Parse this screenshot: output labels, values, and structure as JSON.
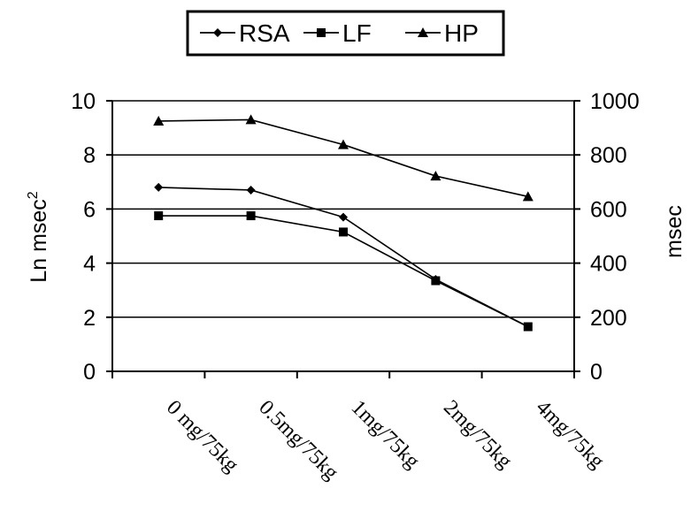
{
  "chart_data": {
    "type": "line",
    "categories": [
      "0 mg/75kg",
      "0.5mg/75kg",
      "1mg/75kg",
      "2mg/75kg",
      "4mg/75kg"
    ],
    "series": [
      {
        "name": "RSA",
        "axis": "left",
        "marker": "diamond",
        "values": [
          6.8,
          6.7,
          5.7,
          3.4,
          1.65
        ]
      },
      {
        "name": "LF",
        "axis": "left",
        "marker": "square",
        "values": [
          5.75,
          5.75,
          5.15,
          3.35,
          1.65
        ]
      },
      {
        "name": "HP",
        "axis": "right",
        "marker": "triangle",
        "values": [
          925,
          930,
          838,
          722,
          646
        ]
      }
    ],
    "ylabel": "Ln msec",
    "ylabel_superscript": "2",
    "y2label": "msec",
    "ylim": [
      0,
      10
    ],
    "y2lim": [
      0,
      1000
    ],
    "yticks": [
      "0",
      "2",
      "4",
      "6",
      "8",
      "10"
    ],
    "y2ticks": [
      "0",
      "200",
      "400",
      "600",
      "800",
      "1000"
    ],
    "grid": true,
    "legend_position": "top"
  },
  "colors": {
    "line": "#000000",
    "grid": "#000000",
    "background": "#ffffff"
  }
}
